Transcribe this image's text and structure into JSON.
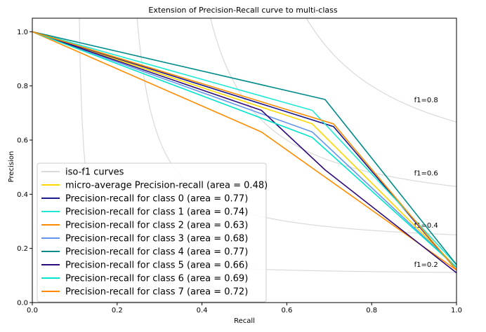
{
  "chart_data": {
    "type": "line",
    "title": "Extension of Precision-Recall curve to multi-class",
    "xlabel": "Recall",
    "ylabel": "Precision",
    "xlim": [
      0.0,
      1.0
    ],
    "ylim": [
      0.0,
      1.05
    ],
    "x_ticks": [
      "0.0",
      "0.2",
      "0.4",
      "0.6",
      "0.8",
      "1.0"
    ],
    "y_ticks": [
      "0.0",
      "0.2",
      "0.4",
      "0.6",
      "0.8",
      "1.0"
    ],
    "grid": false,
    "legend_position": "lower-left",
    "iso_f1": {
      "legend_label": "iso-f1 curves",
      "color": "#d9d9d9",
      "curves": [
        {
          "f1": 0.2,
          "label": "f1=0.2"
        },
        {
          "f1": 0.4,
          "label": "f1=0.4"
        },
        {
          "f1": 0.6,
          "label": "f1=0.6"
        },
        {
          "f1": 0.8,
          "label": "f1=0.8"
        }
      ]
    },
    "series": [
      {
        "name": "micro-average Precision-recall (area = 0.48)",
        "color": "#ffd700",
        "x": [
          0.0,
          0.66,
          1.0
        ],
        "y": [
          1.0,
          0.66,
          0.13
        ]
      },
      {
        "name": "Precision-recall for class 0 (area = 0.77)",
        "color": "#1a1a8c",
        "x": [
          0.0,
          0.71,
          1.0
        ],
        "y": [
          1.0,
          0.65,
          0.12
        ]
      },
      {
        "name": "Precision-recall for class 1 (area = 0.74)",
        "color": "#1de9d6",
        "x": [
          0.0,
          0.66,
          1.0
        ],
        "y": [
          1.0,
          0.71,
          0.14
        ]
      },
      {
        "name": "Precision-recall for class 2 (area = 0.63)",
        "color": "#ff8c00",
        "x": [
          0.0,
          0.54,
          1.0
        ],
        "y": [
          1.0,
          0.63,
          0.12
        ]
      },
      {
        "name": "Precision-recall for class 3 (area = 0.68)",
        "color": "#6495ed",
        "x": [
          0.0,
          0.66,
          1.0
        ],
        "y": [
          1.0,
          0.63,
          0.13
        ]
      },
      {
        "name": "Precision-recall for class 4 (area = 0.77)",
        "color": "#008b8b",
        "x": [
          0.0,
          0.69,
          1.0
        ],
        "y": [
          1.0,
          0.75,
          0.14
        ]
      },
      {
        "name": "Precision-recall for class 5 (area = 0.66)",
        "color": "#2e0a7a",
        "x": [
          0.0,
          0.54,
          0.69,
          1.0
        ],
        "y": [
          1.0,
          0.71,
          0.49,
          0.11
        ]
      },
      {
        "name": "Precision-recall for class 6 (area = 0.69)",
        "color": "#00e5cc",
        "x": [
          0.0,
          0.66,
          1.0
        ],
        "y": [
          1.0,
          0.61,
          0.13
        ]
      },
      {
        "name": "Precision-recall for class 7 (area = 0.72)",
        "color": "#ff8c00",
        "x": [
          0.0,
          0.71,
          1.0
        ],
        "y": [
          1.0,
          0.66,
          0.12
        ]
      }
    ]
  }
}
